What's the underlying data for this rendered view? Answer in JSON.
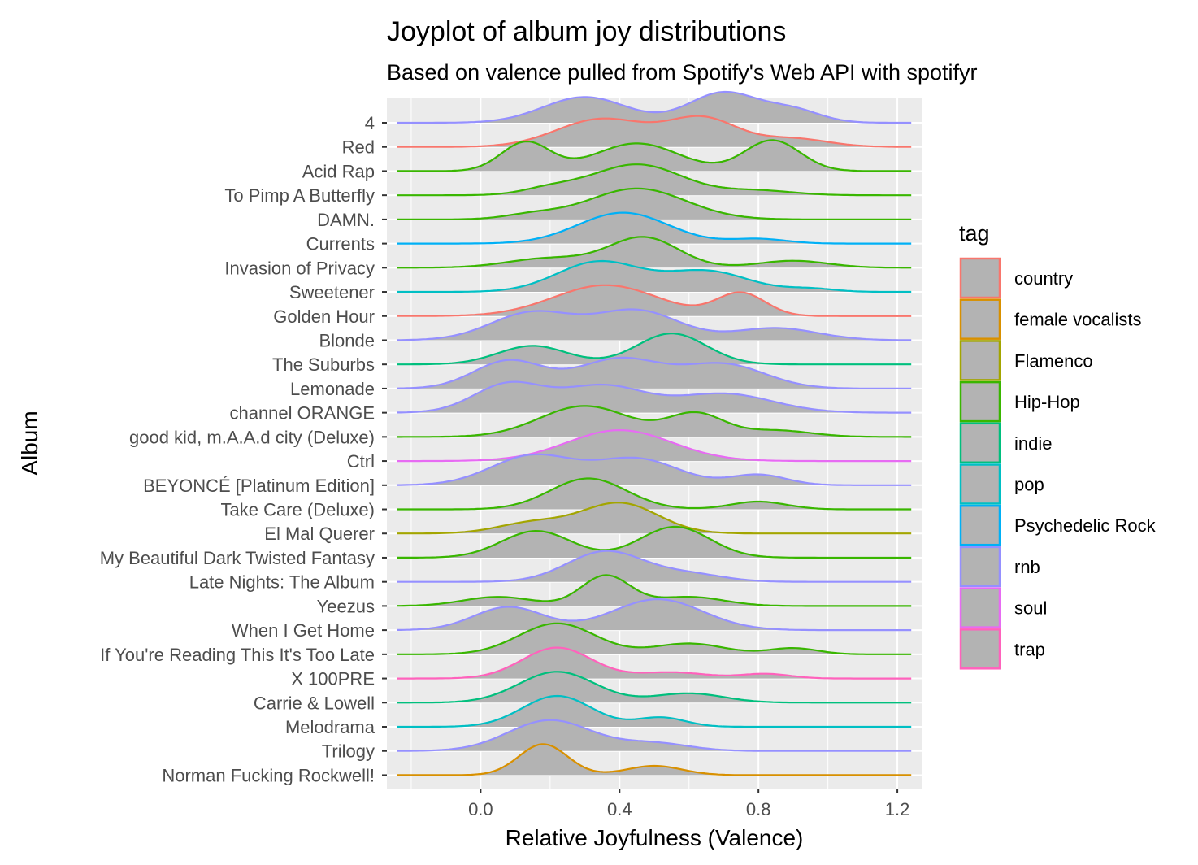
{
  "chart_data": {
    "type": "ridgeline",
    "title": "Joyplot of album joy distributions",
    "subtitle": "Based on valence pulled from Spotify's Web API with spotifyr",
    "xlabel": "Relative Joyfulness (Valence)",
    "ylabel": "Album",
    "xlim": [
      -0.27,
      1.27
    ],
    "x_ticks": [
      "0.0",
      "0.4",
      "0.8",
      "1.2"
    ],
    "x_tick_values": [
      0.0,
      0.4,
      0.8,
      1.2
    ],
    "grid": true,
    "fill_color": "#b3b3b3",
    "panel_color": "#ebebeb",
    "legend": {
      "title": "tag",
      "placement": "right",
      "entries": [
        {
          "label": "country",
          "color": "#F8766D"
        },
        {
          "label": "female vocalists",
          "color": "#D89000"
        },
        {
          "label": "Flamenco",
          "color": "#A3A500"
        },
        {
          "label": "Hip-Hop",
          "color": "#39B600"
        },
        {
          "label": "indie",
          "color": "#00BF7D"
        },
        {
          "label": "pop",
          "color": "#00BFC4"
        },
        {
          "label": "Psychedelic Rock",
          "color": "#00B0F6"
        },
        {
          "label": "rnb",
          "color": "#9590FF"
        },
        {
          "label": "soul",
          "color": "#E76BF3"
        },
        {
          "label": "trap",
          "color": "#FF62BC"
        }
      ]
    },
    "x_range": [
      -0.24,
      1.24
    ],
    "series": [
      {
        "name": "4",
        "tag": "rnb",
        "peaks": [
          [
            0.3,
            0.12,
            0.85
          ],
          [
            0.7,
            0.1,
            1.0
          ],
          [
            0.9,
            0.08,
            0.4
          ]
        ]
      },
      {
        "name": "Red",
        "tag": "country",
        "peaks": [
          [
            0.35,
            0.13,
            0.85
          ],
          [
            0.64,
            0.1,
            0.85
          ],
          [
            0.9,
            0.1,
            0.25
          ]
        ]
      },
      {
        "name": "Acid Rap",
        "tag": "Hip-Hop",
        "peaks": [
          [
            0.13,
            0.07,
            0.75
          ],
          [
            0.45,
            0.12,
            0.72
          ],
          [
            0.84,
            0.08,
            0.8
          ]
        ]
      },
      {
        "name": "To Pimp A Butterfly",
        "tag": "Hip-Hop",
        "peaks": [
          [
            0.45,
            0.13,
            1.0
          ],
          [
            0.2,
            0.08,
            0.2
          ],
          [
            0.8,
            0.1,
            0.15
          ]
        ]
      },
      {
        "name": "DAMN.",
        "tag": "Hip-Hop",
        "peaks": [
          [
            0.45,
            0.14,
            1.0
          ],
          [
            0.15,
            0.08,
            0.15
          ]
        ]
      },
      {
        "name": "Currents",
        "tag": "Psychedelic Rock",
        "peaks": [
          [
            0.41,
            0.13,
            1.0
          ],
          [
            0.8,
            0.08,
            0.15
          ]
        ]
      },
      {
        "name": "Invasion of Privacy",
        "tag": "Hip-Hop",
        "peaks": [
          [
            0.2,
            0.12,
            0.3
          ],
          [
            0.47,
            0.1,
            0.95
          ],
          [
            0.9,
            0.1,
            0.22
          ]
        ]
      },
      {
        "name": "Sweetener",
        "tag": "pop",
        "peaks": [
          [
            0.34,
            0.12,
            0.95
          ],
          [
            0.65,
            0.12,
            0.65
          ],
          [
            0.95,
            0.07,
            0.1
          ]
        ]
      },
      {
        "name": "Golden Hour",
        "tag": "country",
        "peaks": [
          [
            0.36,
            0.15,
            0.95
          ],
          [
            0.75,
            0.07,
            0.7
          ]
        ]
      },
      {
        "name": "Blonde",
        "tag": "rnb",
        "peaks": [
          [
            0.15,
            0.12,
            0.8
          ],
          [
            0.45,
            0.12,
            0.85
          ],
          [
            0.85,
            0.12,
            0.35
          ]
        ]
      },
      {
        "name": "The Suburbs",
        "tag": "indie",
        "peaks": [
          [
            0.15,
            0.1,
            0.6
          ],
          [
            0.55,
            0.1,
            1.0
          ]
        ]
      },
      {
        "name": "Lemonade",
        "tag": "rnb",
        "peaks": [
          [
            0.08,
            0.1,
            0.75
          ],
          [
            0.4,
            0.12,
            0.8
          ],
          [
            0.7,
            0.12,
            0.65
          ]
        ]
      },
      {
        "name": "channel ORANGE",
        "tag": "rnb",
        "peaks": [
          [
            0.08,
            0.1,
            0.75
          ],
          [
            0.35,
            0.12,
            0.7
          ],
          [
            0.7,
            0.14,
            0.5
          ]
        ]
      },
      {
        "name": "good kid, m.A.A.d city (Deluxe)",
        "tag": "Hip-Hop",
        "peaks": [
          [
            0.3,
            0.13,
            0.95
          ],
          [
            0.62,
            0.08,
            0.7
          ],
          [
            0.85,
            0.1,
            0.2
          ]
        ]
      },
      {
        "name": "Ctrl",
        "tag": "soul",
        "peaks": [
          [
            0.4,
            0.15,
            1.0
          ]
        ]
      },
      {
        "name": "BEYONCÉ [Platinum Edition]",
        "tag": "rnb",
        "peaks": [
          [
            0.15,
            0.12,
            0.85
          ],
          [
            0.45,
            0.12,
            0.75
          ],
          [
            0.8,
            0.08,
            0.3
          ]
        ]
      },
      {
        "name": "Take Care (Deluxe)",
        "tag": "Hip-Hop",
        "peaks": [
          [
            0.31,
            0.11,
            1.0
          ],
          [
            0.8,
            0.08,
            0.25
          ]
        ]
      },
      {
        "name": "El Mal Querer",
        "tag": "Flamenco",
        "peaks": [
          [
            0.15,
            0.1,
            0.35
          ],
          [
            0.4,
            0.11,
            1.0
          ]
        ]
      },
      {
        "name": "My Beautiful Dark Twisted Fantasy",
        "tag": "Hip-Hop",
        "peaks": [
          [
            0.16,
            0.1,
            0.82
          ],
          [
            0.56,
            0.1,
            0.95
          ]
        ]
      },
      {
        "name": "Late Nights: The Album",
        "tag": "rnb",
        "peaks": [
          [
            0.36,
            0.11,
            1.0
          ],
          [
            0.6,
            0.1,
            0.25
          ]
        ]
      },
      {
        "name": "Yeezus",
        "tag": "Hip-Hop",
        "peaks": [
          [
            0.05,
            0.1,
            0.3
          ],
          [
            0.36,
            0.07,
            1.0
          ],
          [
            0.6,
            0.1,
            0.3
          ]
        ]
      },
      {
        "name": "When I Get Home",
        "tag": "rnb",
        "peaks": [
          [
            0.08,
            0.1,
            0.75
          ],
          [
            0.51,
            0.13,
            1.0
          ]
        ]
      },
      {
        "name": "If You're Reading This It's Too Late",
        "tag": "Hip-Hop",
        "peaks": [
          [
            0.22,
            0.11,
            1.0
          ],
          [
            0.6,
            0.1,
            0.35
          ],
          [
            0.9,
            0.07,
            0.2
          ]
        ]
      },
      {
        "name": "X 100PRE",
        "tag": "trap",
        "peaks": [
          [
            0.22,
            0.1,
            1.0
          ],
          [
            0.55,
            0.1,
            0.2
          ],
          [
            0.82,
            0.07,
            0.15
          ]
        ]
      },
      {
        "name": "Carrie & Lowell",
        "tag": "indie",
        "peaks": [
          [
            0.22,
            0.11,
            1.0
          ],
          [
            0.6,
            0.1,
            0.3
          ]
        ]
      },
      {
        "name": "Melodrama",
        "tag": "pop",
        "peaks": [
          [
            0.22,
            0.1,
            1.0
          ],
          [
            0.52,
            0.07,
            0.3
          ]
        ]
      },
      {
        "name": "Trilogy",
        "tag": "rnb",
        "peaks": [
          [
            0.2,
            0.12,
            1.0
          ],
          [
            0.5,
            0.1,
            0.25
          ]
        ]
      },
      {
        "name": "Norman Fucking Rockwell!",
        "tag": "female vocalists",
        "peaks": [
          [
            0.18,
            0.07,
            1.0
          ],
          [
            0.5,
            0.08,
            0.3
          ]
        ]
      }
    ]
  }
}
